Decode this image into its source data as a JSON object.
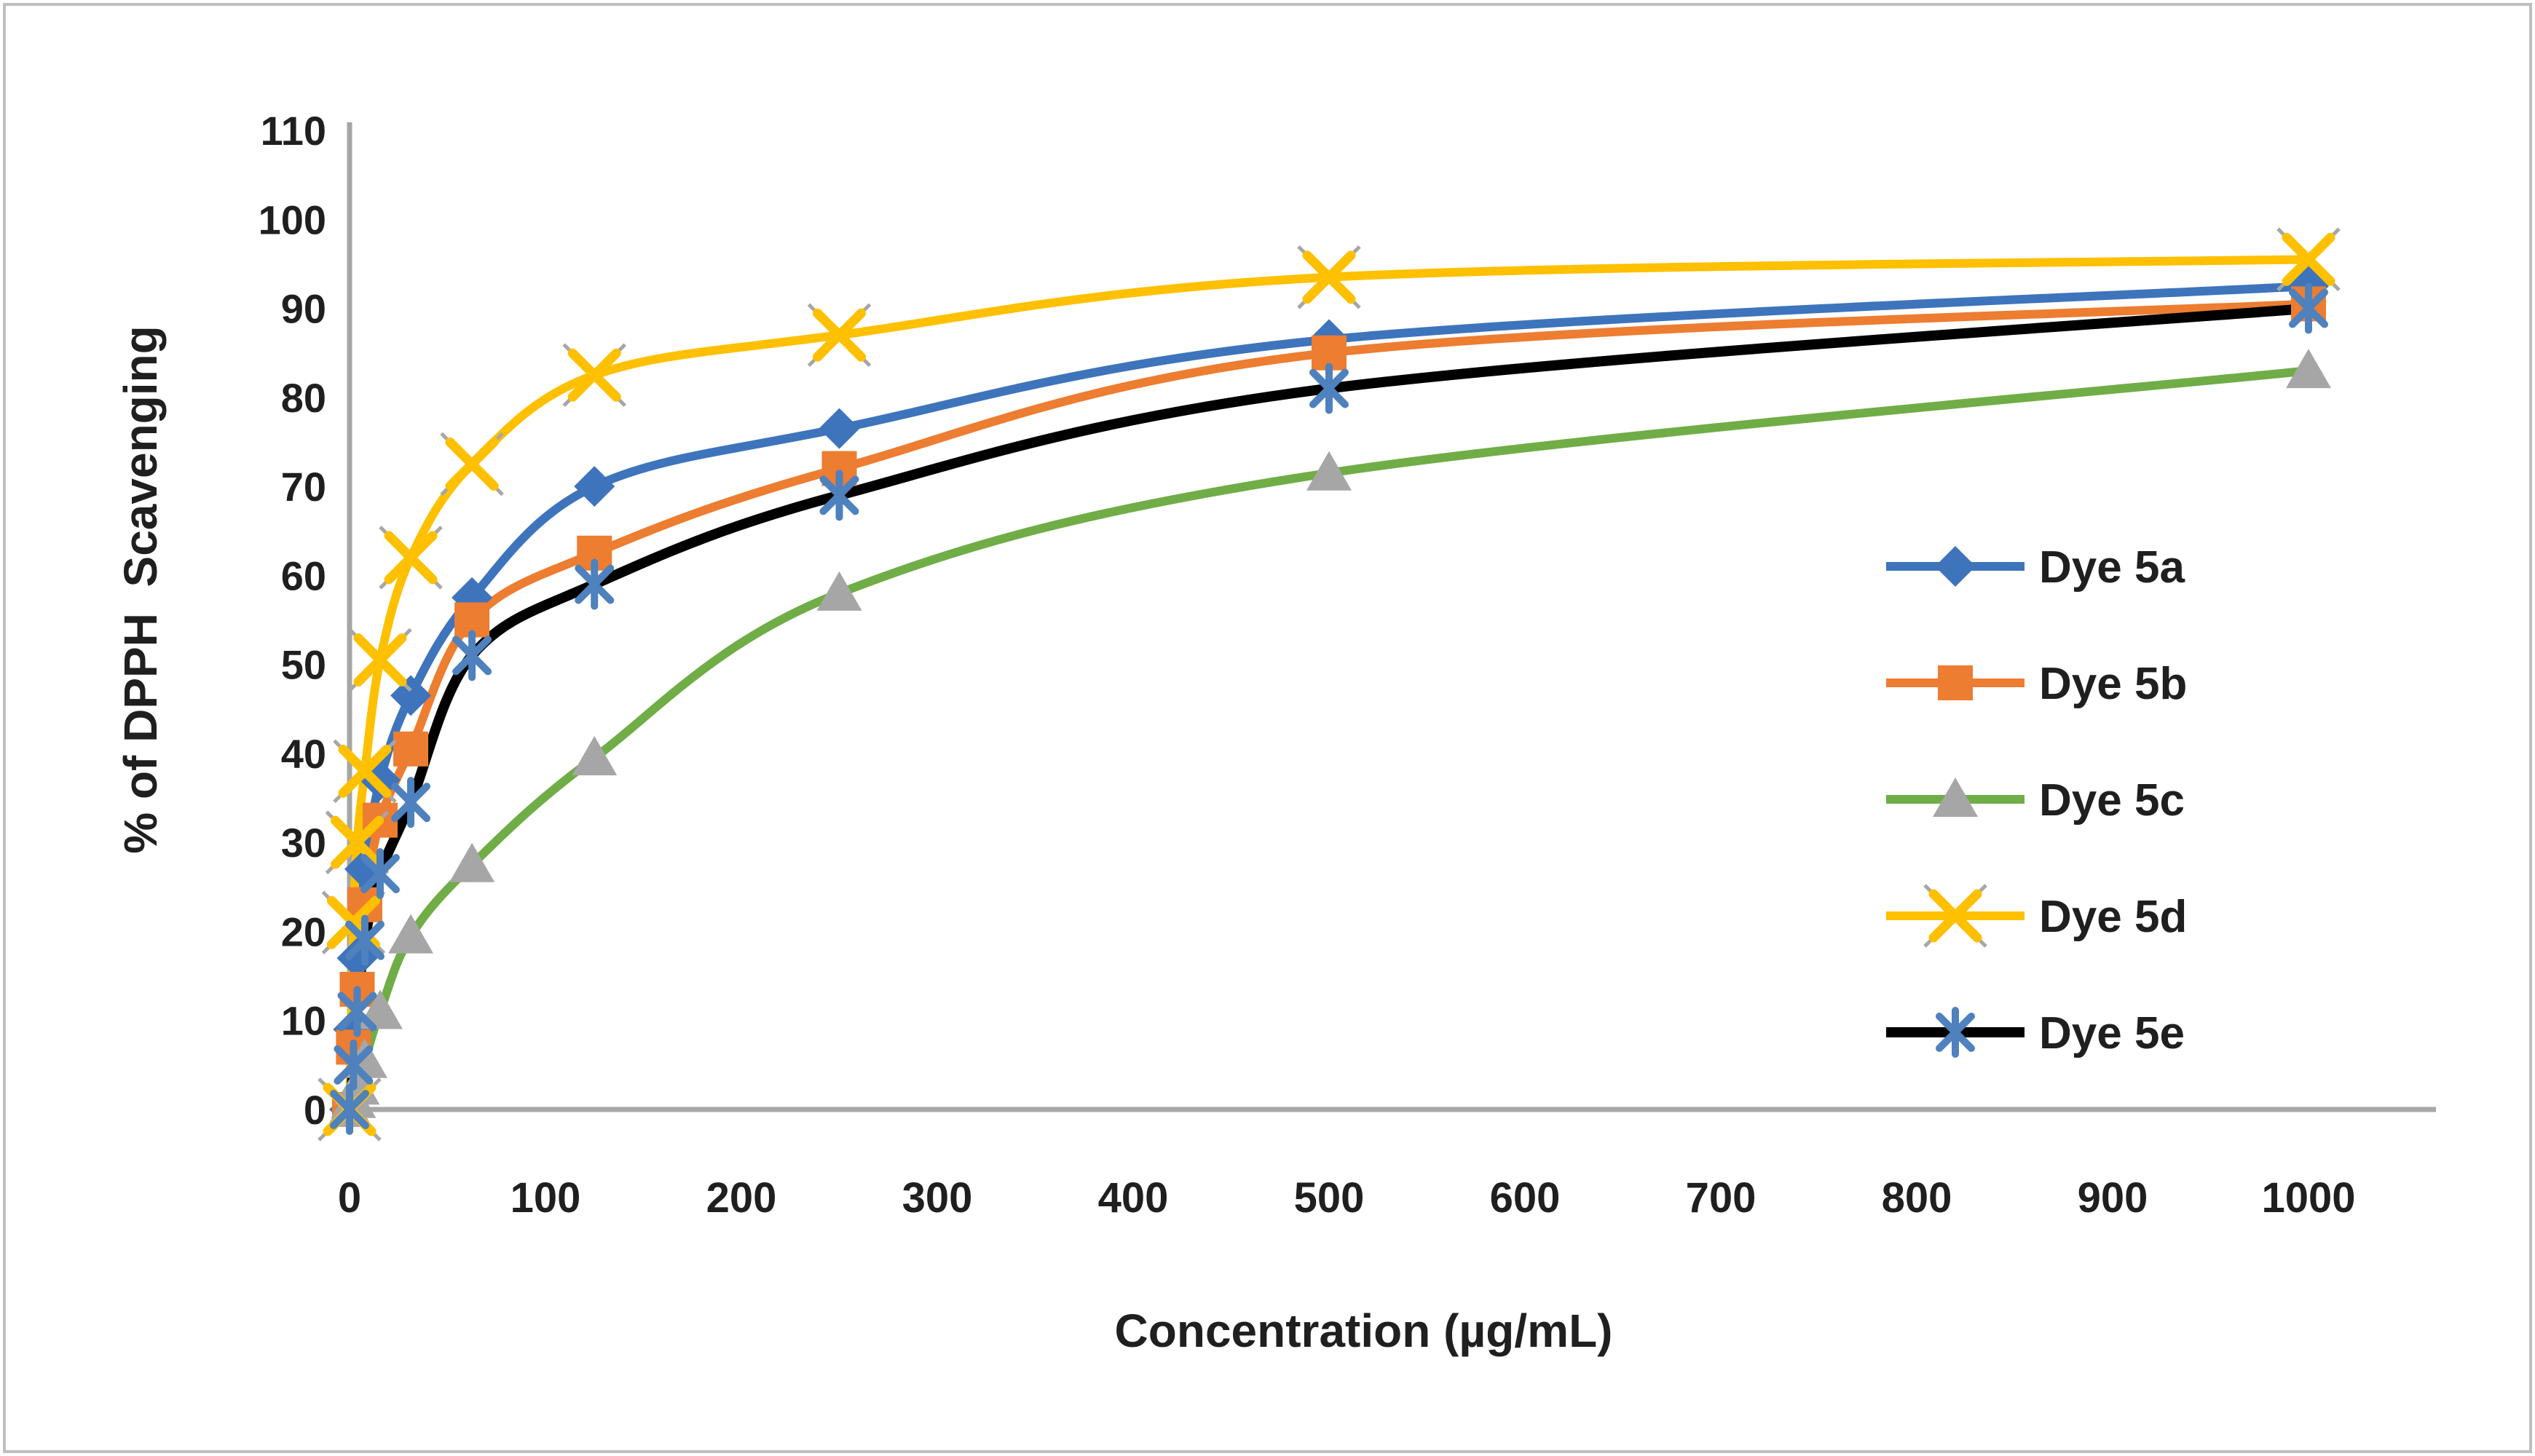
{
  "figure": {
    "background": "#FFFFFF",
    "border_color": "#BFBFBF"
  },
  "chart_data": {
    "type": "line",
    "title": "",
    "xlabel": "Concentration (µg/mL)",
    "ylabel": "% of DPPH  Scavenging",
    "x": [
      0,
      2,
      3.9,
      7.8,
      15.6,
      31.25,
      62.5,
      125,
      250,
      500,
      1000
    ],
    "series": [
      {
        "name": "Dye 5a",
        "line_color": "#3E74BC",
        "marker": "diamond",
        "marker_color": "#3E74BC",
        "values": [
          0,
          9,
          17,
          27,
          37,
          46.5,
          57.5,
          70,
          76.5,
          86.5,
          92.5
        ]
      },
      {
        "name": "Dye 5b",
        "line_color": "#ED7D31",
        "marker": "square",
        "marker_color": "#ED7D31",
        "values": [
          0,
          7,
          13.5,
          23,
          32.5,
          40.5,
          55,
          62.5,
          72,
          85,
          90.5
        ]
      },
      {
        "name": "Dye 5c",
        "line_color": "#70AD47",
        "marker": "triangle",
        "marker_color": "#A6A6A6",
        "values": [
          0,
          1,
          2.5,
          5.5,
          11,
          19.5,
          27.5,
          39.5,
          58,
          71.5,
          83
        ]
      },
      {
        "name": "Dye 5d",
        "line_color": "#FFC000",
        "marker": "x",
        "marker_color": "#FFC000",
        "values": [
          0,
          21,
          30,
          38,
          50.5,
          62,
          72.5,
          82.5,
          87,
          93.5,
          95.5
        ]
      },
      {
        "name": "Dye 5e",
        "line_color": "#000000",
        "marker": "asterisk",
        "marker_color": "#4E81BD",
        "values": [
          0,
          5,
          11,
          19,
          26.5,
          34.5,
          51,
          59,
          69,
          81,
          90
        ]
      }
    ],
    "xlim": [
      0,
      1000
    ],
    "ylim": [
      0,
      110
    ],
    "x_ticks": [
      0,
      100,
      200,
      300,
      400,
      500,
      600,
      700,
      800,
      900,
      1000
    ],
    "y_ticks": [
      0,
      10,
      20,
      30,
      40,
      50,
      60,
      70,
      80,
      90,
      100,
      110
    ],
    "grid": false,
    "legend_position": "right",
    "axis_color": "#A6A6A6",
    "text_color": "#1F1F1F"
  }
}
